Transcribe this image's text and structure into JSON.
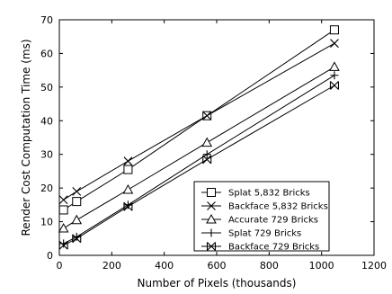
{
  "chart_data": {
    "type": "line",
    "xlabel": "Number of Pixels (thousands)",
    "ylabel": "Render Cost Computation Time (ms)",
    "xlim": [
      0,
      1200
    ],
    "ylim": [
      0,
      70
    ],
    "xticks": [
      0,
      200,
      400,
      600,
      800,
      1000,
      1200
    ],
    "yticks": [
      0,
      10,
      20,
      30,
      40,
      50,
      60,
      70
    ],
    "grid": false,
    "legend_position": "bottom-right",
    "line_color": "#000000",
    "series": [
      {
        "name": "Splat 5,832 Bricks",
        "marker": "square",
        "x": [
          16,
          66,
          262,
          563,
          1049
        ],
        "y": [
          13.5,
          16,
          25.5,
          41.5,
          67
        ]
      },
      {
        "name": "Backface 5,832 Bricks",
        "marker": "x",
        "x": [
          16,
          66,
          262,
          563,
          1049
        ],
        "y": [
          16.5,
          19,
          28,
          41.5,
          63
        ]
      },
      {
        "name": "Accurate 729 Bricks",
        "marker": "triangle",
        "x": [
          16,
          66,
          262,
          563,
          1049
        ],
        "y": [
          8,
          10.5,
          19.5,
          33.5,
          56
        ]
      },
      {
        "name": "Splat 729 Bricks",
        "marker": "plus",
        "x": [
          16,
          66,
          262,
          563,
          1049
        ],
        "y": [
          3.5,
          5.5,
          15,
          30,
          53.5
        ]
      },
      {
        "name": "Backface 729 Bricks",
        "marker": "bowtie",
        "x": [
          16,
          66,
          262,
          563,
          1049
        ],
        "y": [
          3,
          5,
          14.5,
          28.5,
          50.5
        ]
      }
    ]
  }
}
